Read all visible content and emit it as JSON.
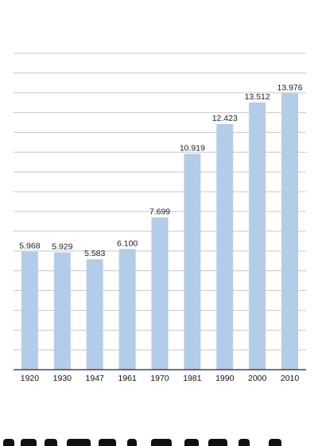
{
  "chart_data": {
    "type": "bar",
    "categories": [
      "1920",
      "1930",
      "1947",
      "1961",
      "1970",
      "1981",
      "1990",
      "2000",
      "2010"
    ],
    "values": [
      5968,
      5929,
      5583,
      6100,
      7699,
      10919,
      12423,
      13512,
      13976
    ],
    "data_labels": [
      "5.968",
      "5.929",
      "5.583",
      "6.100",
      "7.699",
      "10.919",
      "12.423",
      "13.512",
      "13.976"
    ],
    "title": "",
    "xlabel": "",
    "ylabel": "",
    "ylim": [
      0,
      16000
    ],
    "grid": true,
    "legend": "none",
    "bar_color": "#b3cde8",
    "grid_color": "#c8c8c8",
    "axis_color": "#222222"
  }
}
